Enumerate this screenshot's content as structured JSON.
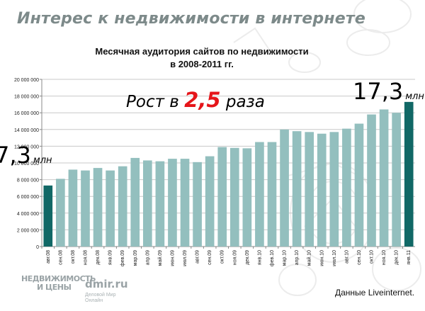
{
  "slide": {
    "title": "Интерес к недвижимости в интернете",
    "growth_prefix": "Рост в",
    "growth_value": "2,5",
    "growth_suffix": "раза",
    "first_label_value": "7,3",
    "first_label_unit": "млн",
    "last_label_value": "17,3",
    "last_label_unit": "млн",
    "source": "Данные Liveinternet.",
    "logo_main": "НЕДВИЖИМОСТЬ",
    "logo_sub": "И ЦЕНЫ",
    "logo_dmir": "dmir.ru",
    "logo_dmir_sub": "Деловой Мир Онлайн"
  },
  "colors": {
    "bar": "#93bfbe",
    "bar_highlight": "#116866",
    "grid": "#c8c8c8",
    "axis": "#888888",
    "accent": "#e5151a"
  },
  "chart_data": {
    "type": "bar",
    "title_line1": "Месячная аудитория сайтов по недвижимости",
    "title_line2": "в 2008-2011 гг.",
    "xlabel": "",
    "ylabel": "",
    "ylim": [
      0,
      20000000
    ],
    "yticks": [
      0,
      2000000,
      4000000,
      6000000,
      8000000,
      10000000,
      12000000,
      14000000,
      16000000,
      18000000,
      20000000
    ],
    "ytick_labels": [
      "0",
      "2 000 000",
      "4 000 000",
      "6 000 000",
      "8 000 000",
      "10 000 000",
      "12 000 000",
      "14 000 000",
      "16 000 000",
      "18 000 000",
      "20 000 000"
    ],
    "grid": true,
    "legend": "none",
    "categories": [
      "авг.08",
      "сен.08",
      "окт.08",
      "ноя.08",
      "дек.08",
      "янв.09",
      "фев.09",
      "мар.09",
      "апр.09",
      "май.09",
      "июн.09",
      "июл.09",
      "авг.09",
      "сен.09",
      "окт.09",
      "ноя.09",
      "дек.09",
      "янв.10",
      "фев.10",
      "мар.10",
      "апр.10",
      "май.10",
      "июн.10",
      "июл.10",
      "авг.10",
      "сен.10",
      "окт.10",
      "ноя.10",
      "дек.10",
      "янв.11"
    ],
    "values": [
      7300000,
      8100000,
      9200000,
      9100000,
      9400000,
      9100000,
      9600000,
      10600000,
      10300000,
      10200000,
      10500000,
      10500000,
      10100000,
      10800000,
      11900000,
      11800000,
      11750000,
      12500000,
      12500000,
      14000000,
      13800000,
      13700000,
      13500000,
      13700000,
      14100000,
      14700000,
      15800000,
      16400000,
      16000000,
      17300000
    ],
    "highlight": [
      0,
      29
    ]
  }
}
